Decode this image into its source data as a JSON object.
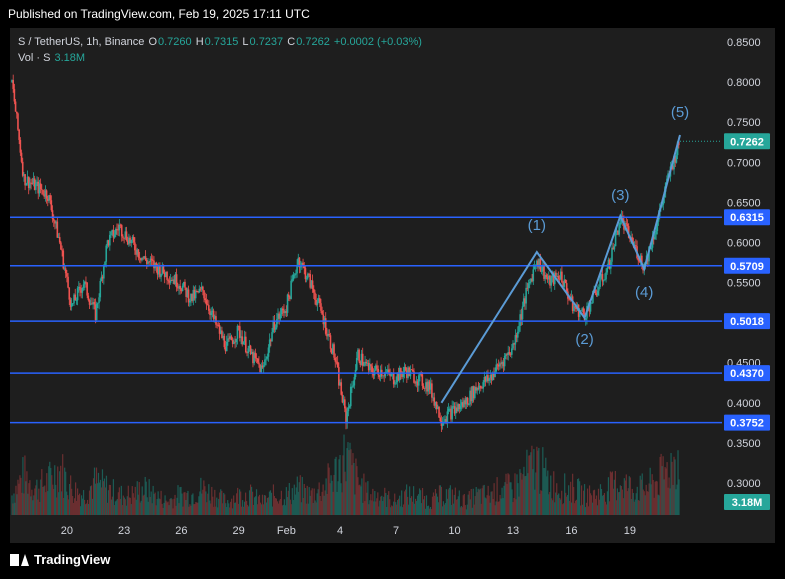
{
  "header": {
    "published": "Published on TradingView.com, Feb 19, 2025 17:11 UTC"
  },
  "legend": {
    "symbol": "S / TetherUS, 1h, Binance",
    "o_label": "O",
    "o": "0.7260",
    "h_label": "H",
    "h": "0.7315",
    "l_label": "L",
    "l": "0.7237",
    "c_label": "C",
    "c": "0.7262",
    "change": "+0.0002 (+0.03%)",
    "vol_label": "Vol · S",
    "vol": "3.18M"
  },
  "footer": {
    "brand": "TradingView"
  },
  "colors": {
    "up": "#26a69a",
    "down": "#ef5350",
    "level": "#2962ff",
    "wave": "#5b9bd5",
    "price_badge": "#26a69a",
    "level_badge": "#2962ff"
  },
  "chart_data": {
    "type": "candlestick",
    "ylim": [
      0.28,
      0.86
    ],
    "y_ticks": [
      "0.8500",
      "0.8000",
      "0.7500",
      "0.7000",
      "0.6500",
      "0.6000",
      "0.5500",
      "0.4500",
      "0.4000",
      "0.3500",
      "0.3000"
    ],
    "x_ticks": [
      "20",
      "23",
      "26",
      "29",
      "Feb",
      "4",
      "7",
      "10",
      "13",
      "16",
      "19"
    ],
    "last_price": {
      "value": 0.7262,
      "label": "0.7262"
    },
    "volume_badge": "3.18M",
    "levels": [
      {
        "value": 0.6315,
        "label": "0.6315"
      },
      {
        "value": 0.5709,
        "label": "0.5709"
      },
      {
        "value": 0.5018,
        "label": "0.5018"
      },
      {
        "value": 0.437,
        "label": "0.4370"
      },
      {
        "value": 0.3752,
        "label": "0.3752"
      }
    ],
    "price_path": [
      [
        0,
        0.8
      ],
      [
        1,
        0.68
      ],
      [
        2,
        0.67
      ],
      [
        3,
        0.66
      ],
      [
        4,
        0.6
      ],
      [
        5,
        0.52
      ],
      [
        6,
        0.55
      ],
      [
        7,
        0.51
      ],
      [
        8,
        0.6
      ],
      [
        9,
        0.62
      ],
      [
        10,
        0.6
      ],
      [
        11,
        0.58
      ],
      [
        12,
        0.57
      ],
      [
        13,
        0.56
      ],
      [
        14,
        0.55
      ],
      [
        15,
        0.53
      ],
      [
        16,
        0.54
      ],
      [
        17,
        0.5
      ],
      [
        18,
        0.47
      ],
      [
        19,
        0.49
      ],
      [
        20,
        0.46
      ],
      [
        21,
        0.44
      ],
      [
        22,
        0.5
      ],
      [
        23,
        0.52
      ],
      [
        24,
        0.58
      ],
      [
        25,
        0.55
      ],
      [
        26,
        0.51
      ],
      [
        27,
        0.46
      ],
      [
        28,
        0.38
      ],
      [
        29,
        0.46
      ],
      [
        30,
        0.44
      ],
      [
        31,
        0.44
      ],
      [
        32,
        0.43
      ],
      [
        33,
        0.44
      ],
      [
        34,
        0.43
      ],
      [
        35,
        0.42
      ],
      [
        36,
        0.38
      ],
      [
        37,
        0.39
      ],
      [
        38,
        0.4
      ],
      [
        39,
        0.42
      ],
      [
        40,
        0.43
      ],
      [
        41,
        0.45
      ],
      [
        42,
        0.47
      ],
      [
        43,
        0.53
      ],
      [
        44,
        0.58
      ],
      [
        45,
        0.55
      ],
      [
        46,
        0.56
      ],
      [
        47,
        0.52
      ],
      [
        48,
        0.51
      ],
      [
        49,
        0.54
      ],
      [
        50,
        0.57
      ],
      [
        51,
        0.63
      ],
      [
        52,
        0.6
      ],
      [
        53,
        0.57
      ],
      [
        54,
        0.62
      ],
      [
        55,
        0.68
      ],
      [
        56,
        0.7262
      ]
    ],
    "volume_path": [
      3,
      6,
      4,
      5,
      7,
      4,
      3,
      5,
      4,
      3,
      3,
      4,
      3,
      2,
      3,
      3,
      4,
      3,
      2,
      3,
      3,
      2,
      3,
      3,
      4,
      3,
      4,
      6,
      9,
      5,
      3,
      3,
      2,
      3,
      3,
      2,
      3,
      3,
      2,
      3,
      3,
      4,
      4,
      6,
      8,
      5,
      4,
      4,
      3,
      3,
      4,
      5,
      4,
      4,
      5,
      7,
      9
    ],
    "elliott_waves": [
      {
        "label": "(1)",
        "index": 44,
        "value": 0.588
      },
      {
        "label": "(2)",
        "index": 48,
        "value": 0.506
      },
      {
        "label": "(3)",
        "index": 51,
        "value": 0.633
      },
      {
        "label": "(4)",
        "index": 53,
        "value": 0.567
      },
      {
        "label": "(5)",
        "index": 56,
        "value": 0.734
      }
    ],
    "wave_start": {
      "index": 36,
      "value": 0.4
    }
  }
}
